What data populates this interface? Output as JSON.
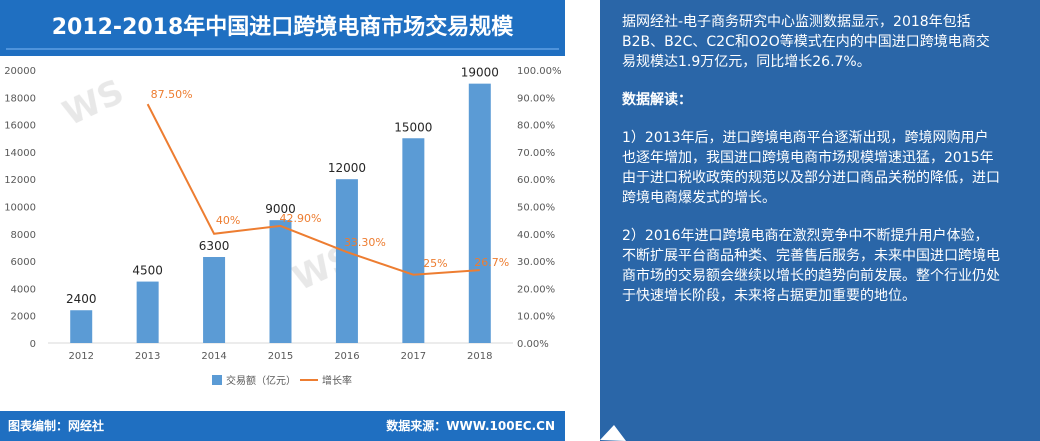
{
  "chart_data": {
    "type": "bar+line",
    "title": "2012-2018年中国进口跨境电商市场交易规模",
    "categories": [
      "2012",
      "2013",
      "2014",
      "2015",
      "2016",
      "2017",
      "2018"
    ],
    "series": [
      {
        "name": "交易额（亿元）",
        "type": "bar",
        "axis": "left",
        "values": [
          2400,
          4500,
          6300,
          9000,
          12000,
          15000,
          19000
        ],
        "labels": [
          "2400",
          "4500",
          "6300",
          "9000",
          "12000",
          "15000",
          "19000"
        ],
        "color": "#5b9bd5"
      },
      {
        "name": "增长率",
        "type": "line",
        "axis": "right",
        "values": [
          null,
          87.5,
          40,
          42.9,
          33.3,
          25,
          26.7
        ],
        "labels": [
          "",
          "87.50%",
          "40%",
          "42.90%",
          "33.30%",
          "25%",
          "26.7%"
        ],
        "color": "#ed7d31"
      }
    ],
    "y_left": {
      "min": 0,
      "max": 20000,
      "ticks": [
        "0",
        "2000",
        "4000",
        "6000",
        "8000",
        "10000",
        "12000",
        "14000",
        "16000",
        "18000",
        "20000"
      ]
    },
    "y_right": {
      "min": 0,
      "max": 100,
      "ticks": [
        "0.00%",
        "10.00%",
        "20.00%",
        "30.00%",
        "40.00%",
        "50.00%",
        "60.00%",
        "70.00%",
        "80.00%",
        "90.00%",
        "100.00%"
      ]
    },
    "legend_position": "bottom",
    "grid": false
  },
  "footer": {
    "left": "图表编制：网经社",
    "right": "数据来源：WWW.100EC.CN"
  },
  "panel": {
    "intro": "据网经社-电子商务研究中心监测数据显示，2018年包括B2B、B2C、C2C和O2O等模式在内的中国进口跨境电商交易规模达1.9万亿元，同比增长26.7%。",
    "heading": "数据解读：",
    "p1": "1）2013年后，进口跨境电商平台逐渐出现，跨境网购用户也逐年增加，我国进口跨境电商市场规模增速迅猛，2015年由于进口税收政策的规范以及部分进口商品关税的降低，进口跨境电商爆发式的增长。",
    "p2": "2）2016年进口跨境电商在激烈竞争中不断提升用户体验，不断扩展平台商品种类、完善售后服务，未来中国进口跨境电商市场的交易额会继续以增长的趋势向前发展。整个行业仍处于快速增长阶段，未来将占据更加重要的地位。"
  },
  "colors": {
    "header": "#1f6fc1",
    "panel": "#2a66a8",
    "bar": "#5b9bd5",
    "line": "#ed7d31"
  }
}
